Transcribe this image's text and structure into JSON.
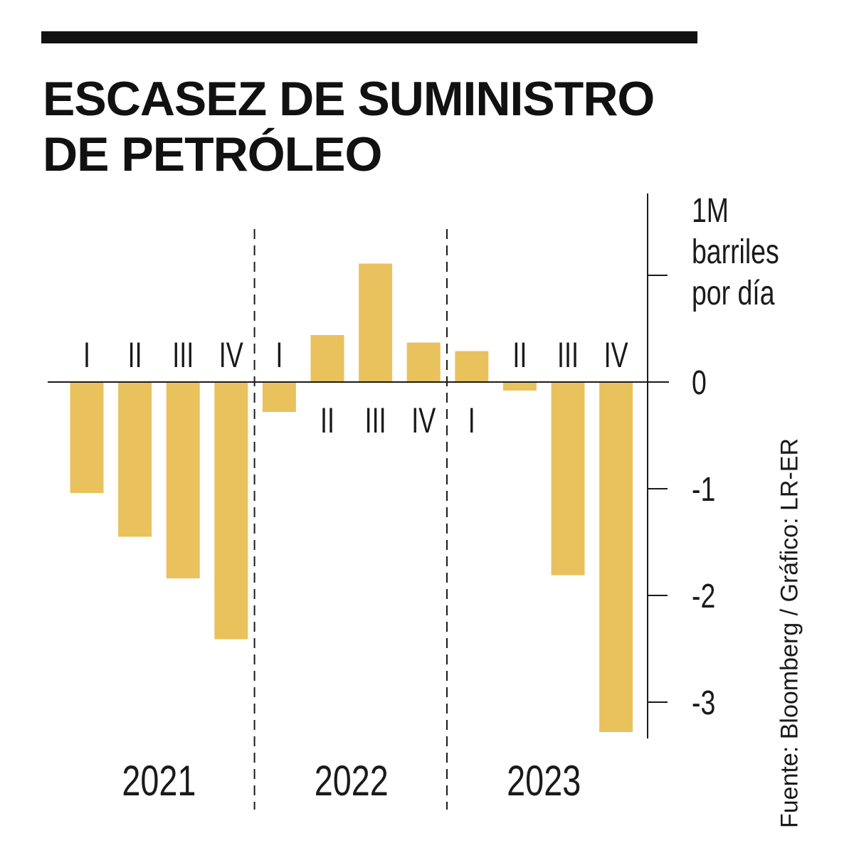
{
  "title": "ESCASEZ DE SUMINISTRO DE PETRÓLEO",
  "source": "Fuente: Bloomberg / Gráfico: LR-ER",
  "colors": {
    "bar": "#E9C25E",
    "ink": "#1a1a1a",
    "rule": "#111111"
  },
  "chart_data": {
    "type": "bar",
    "title": "ESCASEZ DE SUMINISTRO DE PETRÓLEO",
    "ylabel": "1M barriles por día",
    "ylabel_lines": [
      "1M",
      "barriles",
      "por día"
    ],
    "ylim": [
      -3.35,
      1.0
    ],
    "yticks": [
      -3,
      -2,
      -1,
      0
    ],
    "ytick_labels": [
      "-3",
      "-2",
      "-1",
      "0"
    ],
    "y_axis_position": "right",
    "grid": false,
    "categories": [
      "I",
      "II",
      "III",
      "IV",
      "I",
      "II",
      "III",
      "IV",
      "I",
      "II",
      "III",
      "IV"
    ],
    "years": [
      "2021",
      "2022",
      "2023"
    ],
    "year_of_category": [
      "2021",
      "2021",
      "2021",
      "2021",
      "2022",
      "2022",
      "2022",
      "2022",
      "2023",
      "2023",
      "2023",
      "2023"
    ],
    "values": [
      -1.04,
      -1.45,
      -1.84,
      -2.41,
      -0.28,
      0.44,
      1.11,
      0.37,
      0.29,
      -0.08,
      -1.81,
      -3.28
    ],
    "year_separators": "dashed"
  }
}
